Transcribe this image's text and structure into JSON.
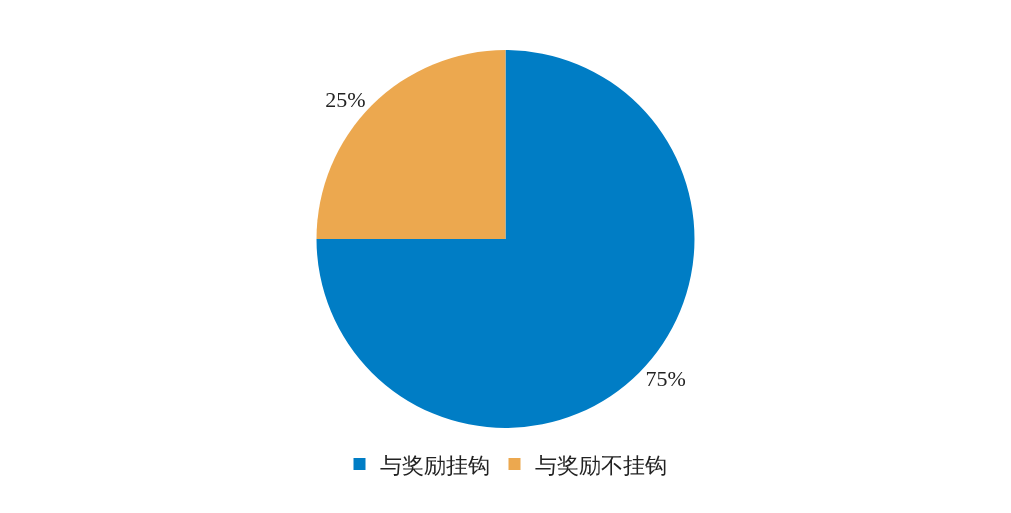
{
  "chart_data": {
    "type": "pie",
    "categories": [
      "与奖励挂钩",
      "与奖励不挂钩"
    ],
    "values": [
      75,
      25
    ],
    "colors": [
      "#007dc5",
      "#eca84f"
    ],
    "value_labels": [
      "75%",
      "25%"
    ],
    "legend": "bottom"
  }
}
